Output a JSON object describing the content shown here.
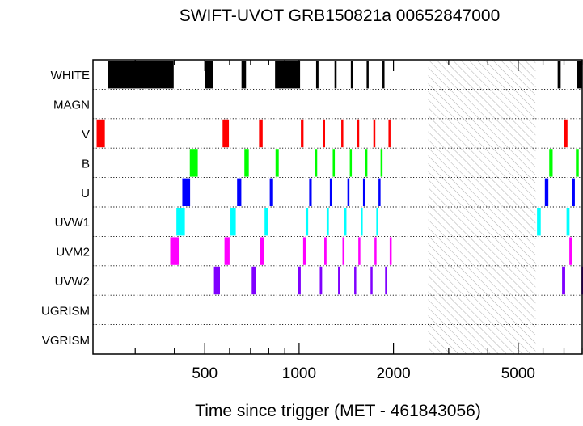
{
  "chart_data": {
    "type": "timeline",
    "title": "SWIFT-UVOT GRB150821a 00652847000",
    "xlabel": "Time since trigger (MET - 461843056)",
    "xscale": "log",
    "xlim": [
      220,
      8000
    ],
    "xticks": [
      {
        "value": 500,
        "label": "500"
      },
      {
        "value": 1000,
        "label": "1000"
      },
      {
        "value": 2000,
        "label": "2000"
      },
      {
        "value": 5000,
        "label": "5000"
      }
    ],
    "gap": {
      "start": 2580,
      "end": 5680,
      "style": "hatched"
    },
    "rows": [
      {
        "name": "WHITE",
        "color": "#000000",
        "intervals": [
          [
            246,
            398
          ],
          [
            502,
            530
          ],
          [
            655,
            677
          ],
          [
            838,
            1007
          ],
          [
            1133,
            1153
          ],
          [
            1297,
            1317
          ],
          [
            1462,
            1482
          ],
          [
            1642,
            1662
          ],
          [
            1845,
            1865
          ],
          [
            6680,
            6830
          ],
          [
            7720,
            8000
          ]
        ]
      },
      {
        "name": "MAGN",
        "color": "#000000",
        "intervals": []
      },
      {
        "name": "V",
        "color": "#ff0000",
        "intervals": [
          [
            226,
            240
          ],
          [
            570,
            597
          ],
          [
            745,
            765
          ],
          [
            1013,
            1033
          ],
          [
            1190,
            1210
          ],
          [
            1363,
            1383
          ],
          [
            1532,
            1552
          ],
          [
            1725,
            1745
          ],
          [
            1928,
            1948
          ],
          [
            7000,
            7180
          ]
        ]
      },
      {
        "name": "B",
        "color": "#00ff00",
        "intervals": [
          [
            448,
            475
          ],
          [
            669,
            691
          ],
          [
            841,
            861
          ],
          [
            1122,
            1142
          ],
          [
            1280,
            1300
          ],
          [
            1451,
            1471
          ],
          [
            1627,
            1647
          ],
          [
            1819,
            1839
          ],
          [
            6280,
            6440
          ],
          [
            7640,
            7800
          ]
        ]
      },
      {
        "name": "U",
        "color": "#0000ff",
        "intervals": [
          [
            424,
            449
          ],
          [
            634,
            654
          ],
          [
            806,
            826
          ],
          [
            1077,
            1097
          ],
          [
            1253,
            1273
          ],
          [
            1426,
            1446
          ],
          [
            1599,
            1619
          ],
          [
            1792,
            1812
          ],
          [
            6080,
            6240
          ],
          [
            7420,
            7580
          ]
        ]
      },
      {
        "name": "UVW1",
        "color": "#00ffff",
        "intervals": [
          [
            406,
            432
          ],
          [
            604,
            628
          ],
          [
            776,
            796
          ],
          [
            1049,
            1069
          ],
          [
            1224,
            1244
          ],
          [
            1395,
            1415
          ],
          [
            1572,
            1592
          ],
          [
            1763,
            1783
          ],
          [
            5740,
            5900
          ],
          [
            7130,
            7290
          ]
        ]
      },
      {
        "name": "UVM2",
        "color": "#ff00ff",
        "intervals": [
          [
            388,
            413
          ],
          [
            578,
            600
          ],
          [
            751,
            771
          ],
          [
            1030,
            1050
          ],
          [
            1203,
            1223
          ],
          [
            1375,
            1395
          ],
          [
            1545,
            1565
          ],
          [
            1740,
            1760
          ],
          [
            1945,
            1965
          ],
          [
            7280,
            7440
          ]
        ]
      },
      {
        "name": "UVW2",
        "color": "#8000ff",
        "intervals": [
          [
            535,
            559
          ],
          [
            706,
            726
          ],
          [
            992,
            1012
          ],
          [
            1164,
            1184
          ],
          [
            1331,
            1351
          ],
          [
            1499,
            1519
          ],
          [
            1690,
            1710
          ],
          [
            1881,
            1901
          ],
          [
            6900,
            7060
          ],
          [
            7960,
            8000
          ]
        ]
      },
      {
        "name": "UGRISM",
        "color": "#000000",
        "intervals": []
      },
      {
        "name": "VGRISM",
        "color": "#000000",
        "intervals": []
      }
    ]
  }
}
